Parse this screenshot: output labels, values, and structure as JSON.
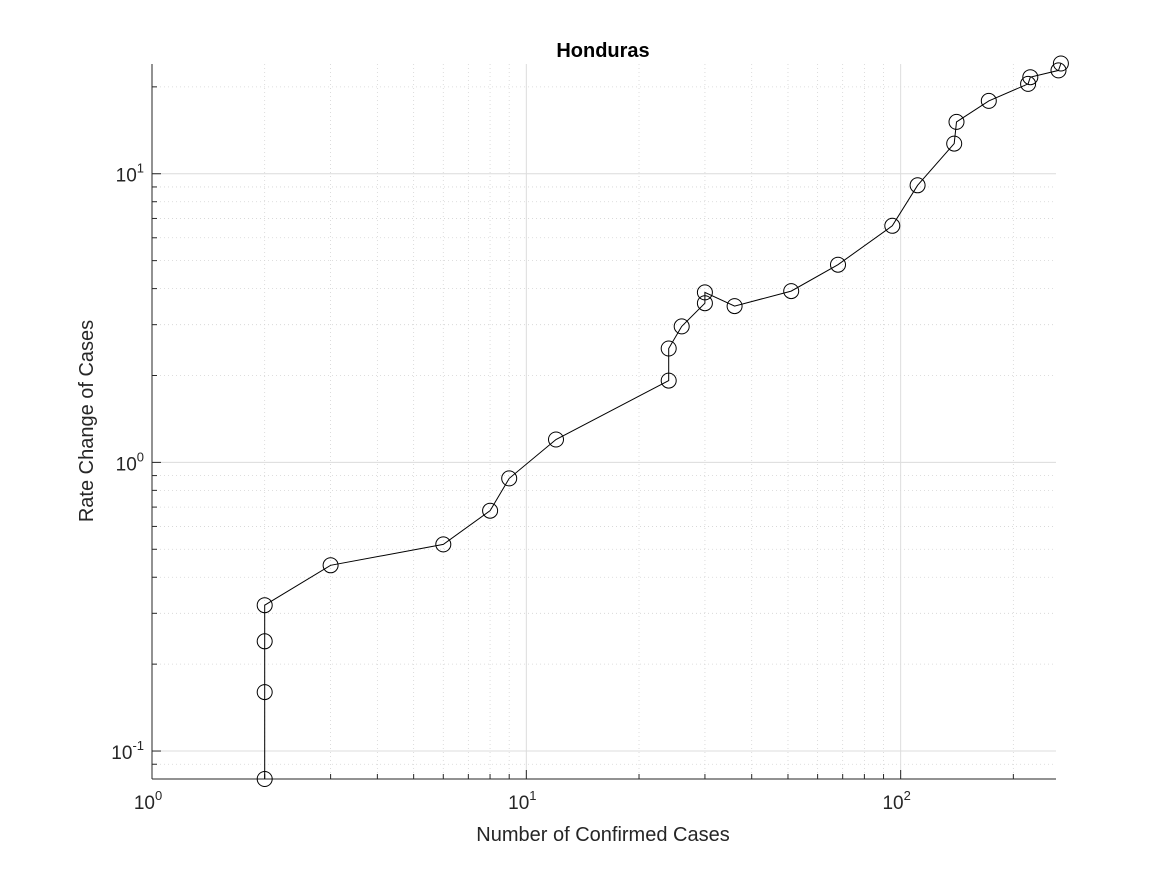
{
  "chart_data": {
    "type": "line",
    "title": "Honduras",
    "xlabel": "Number of Confirmed Cases",
    "ylabel": "Rate Change of Cases",
    "xscale": "log",
    "yscale": "log",
    "xlim": [
      1,
      260
    ],
    "ylim": [
      0.08,
      24
    ],
    "grid": true,
    "minor_grid": true,
    "marker": "open-circle",
    "line_color": "#000000",
    "x_ticks": [
      {
        "value": 1,
        "base": "10",
        "exp": "0"
      },
      {
        "value": 10,
        "base": "10",
        "exp": "1"
      },
      {
        "value": 100,
        "base": "10",
        "exp": "2"
      }
    ],
    "y_ticks": [
      {
        "value": 0.1,
        "base": "10",
        "exp": "-1"
      },
      {
        "value": 1,
        "base": "10",
        "exp": "0"
      },
      {
        "value": 10,
        "base": "10",
        "exp": "1"
      }
    ],
    "series": [
      {
        "x": [
          2,
          2,
          2,
          2,
          3,
          6,
          8,
          9,
          12,
          24,
          24,
          26,
          30,
          30,
          36,
          51,
          68,
          95,
          111,
          139,
          141,
          172,
          219,
          222,
          264,
          268
        ],
        "y": [
          0.08,
          0.16,
          0.24,
          0.32,
          0.44,
          0.52,
          0.68,
          0.88,
          1.2,
          1.92,
          2.48,
          2.96,
          3.56,
          3.88,
          3.48,
          3.92,
          4.84,
          6.6,
          9.12,
          12.72,
          15.12,
          17.88,
          20.48,
          21.6,
          22.8,
          24.1
        ]
      }
    ]
  }
}
